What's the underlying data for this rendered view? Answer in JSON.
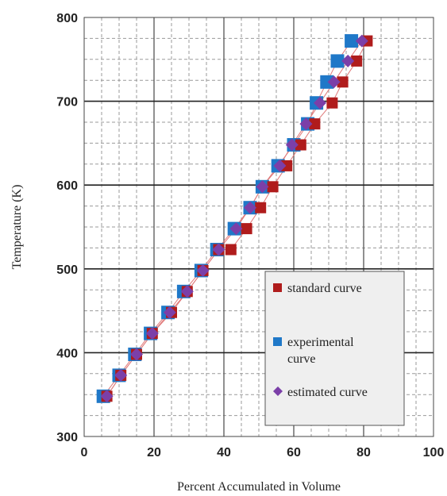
{
  "chart_data": {
    "type": "scatter",
    "xlabel": "Percent Accumulated in Volume",
    "ylabel": "Temperature (K)",
    "xlim": [
      0,
      100
    ],
    "ylim": [
      300,
      800
    ],
    "xticks": [
      "0",
      "20",
      "40",
      "60",
      "80",
      "100"
    ],
    "yticks": [
      "300",
      "400",
      "500",
      "600",
      "700",
      "800"
    ],
    "grid": true,
    "legend_position": "bottom-right",
    "line_color": "#e07a7a",
    "series": [
      {
        "name": "standard curve",
        "color": "#b01c1c",
        "marker": "square",
        "x": [
          6.5,
          10.5,
          15,
          19.5,
          25,
          29.5,
          34,
          38.5,
          42,
          46.5,
          50.5,
          54,
          58,
          62,
          66,
          71,
          74,
          78,
          81
        ],
        "y": [
          348,
          373,
          398,
          423,
          448,
          473,
          498,
          523,
          523,
          548,
          573,
          598,
          623,
          648,
          673,
          698,
          723,
          748,
          772
        ]
      },
      {
        "name": "experimental curve",
        "color": "#1f78c8",
        "marker": "square",
        "x": [
          5.5,
          10,
          14.5,
          19,
          24,
          28.5,
          33.5,
          38,
          43,
          47.5,
          51,
          55.5,
          60,
          64,
          66.5,
          69.5,
          72.5,
          76.5
        ],
        "y": [
          348,
          373,
          398,
          423,
          448,
          473,
          498,
          523,
          548,
          573,
          598,
          623,
          648,
          673,
          698,
          723,
          748,
          772
        ]
      },
      {
        "name": "estimated curve",
        "color": "#7b3fa8",
        "marker": "diamond",
        "x": [
          6.5,
          10.5,
          15,
          19.5,
          24.5,
          29.5,
          34,
          38.5,
          43.5,
          47.5,
          51,
          56,
          59.5,
          63.5,
          67.5,
          71.5,
          75.5,
          79.5
        ],
        "y": [
          348,
          373,
          398,
          423,
          448,
          473,
          498,
          523,
          548,
          573,
          598,
          623,
          648,
          673,
          698,
          723,
          748,
          772
        ]
      }
    ]
  }
}
